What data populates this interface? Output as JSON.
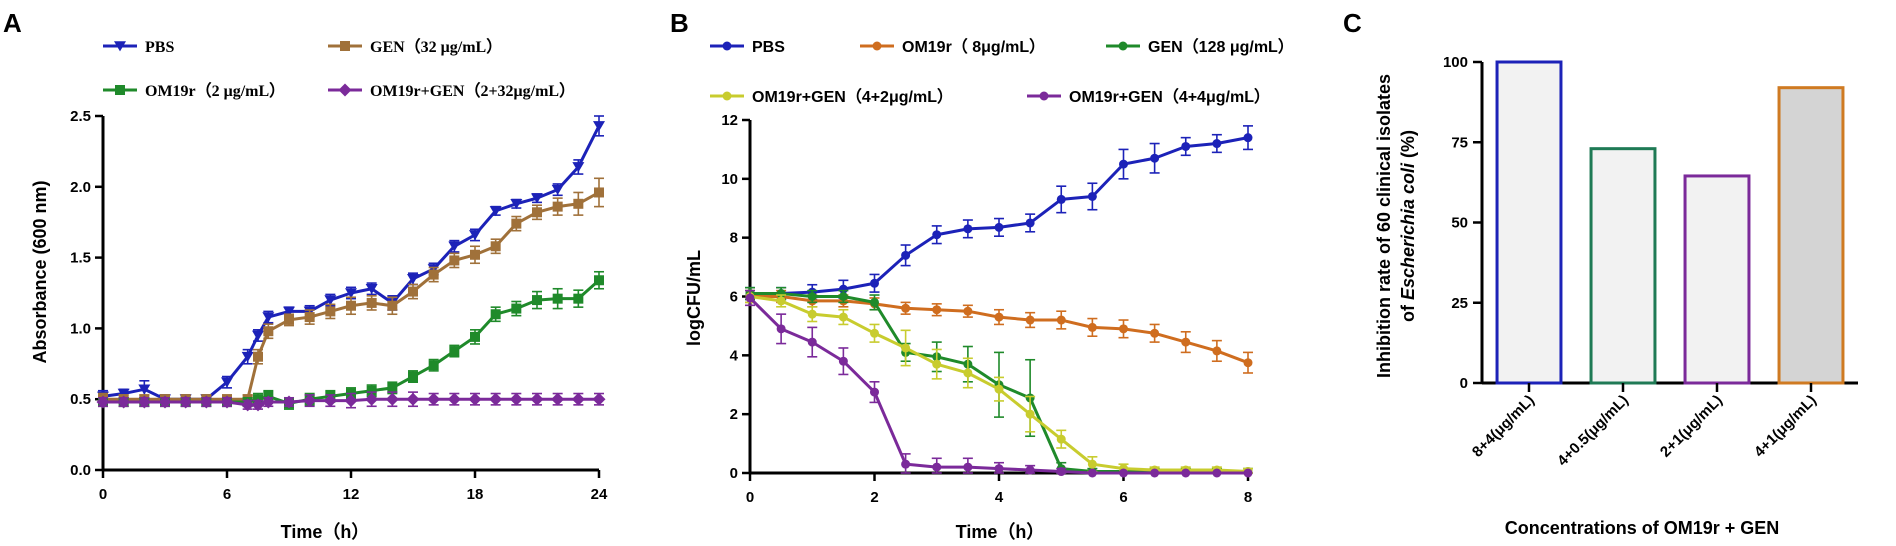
{
  "chart_data": [
    {
      "panel": "A",
      "type": "line",
      "title": "",
      "xlabel": "Time（h）",
      "ylabel": "Absorbance (600 nm)",
      "xlim": [
        0,
        24
      ],
      "ylim": [
        0,
        2.5
      ],
      "xticks": [
        "0",
        "6",
        "12",
        "18",
        "24"
      ],
      "yticks": [
        "0.0",
        "0.5",
        "1.0",
        "1.5",
        "2.0",
        "2.5"
      ],
      "legend_position": "top",
      "x": [
        0,
        1,
        2,
        3,
        4,
        5,
        6,
        7,
        7.5,
        8,
        9,
        10,
        11,
        12,
        13,
        14,
        15,
        16,
        17,
        18,
        19,
        20,
        21,
        22,
        23,
        24
      ],
      "series": [
        {
          "name": "PBS",
          "color": "#1c22b8",
          "marker": "triangle-down",
          "values": [
            0.52,
            0.54,
            0.57,
            0.5,
            0.5,
            0.5,
            0.62,
            0.8,
            0.95,
            1.08,
            1.12,
            1.12,
            1.2,
            1.25,
            1.28,
            1.18,
            1.35,
            1.42,
            1.58,
            1.66,
            1.83,
            1.88,
            1.92,
            1.98,
            2.14,
            2.43
          ],
          "errors": [
            0.04,
            0.03,
            0.06,
            0.03,
            0.03,
            0.03,
            0.04,
            0.05,
            0.04,
            0.04,
            0.03,
            0.04,
            0.04,
            0.04,
            0.04,
            0.05,
            0.04,
            0.04,
            0.04,
            0.04,
            0.03,
            0.03,
            0.03,
            0.04,
            0.05,
            0.07
          ]
        },
        {
          "name": "GEN（32 μg/mL）",
          "color": "#a0713a",
          "marker": "square",
          "values": [
            0.5,
            0.5,
            0.5,
            0.5,
            0.5,
            0.5,
            0.5,
            0.5,
            0.8,
            0.98,
            1.06,
            1.08,
            1.12,
            1.16,
            1.18,
            1.16,
            1.26,
            1.38,
            1.48,
            1.52,
            1.58,
            1.74,
            1.82,
            1.86,
            1.88,
            1.96
          ],
          "errors": [
            0.04,
            0.03,
            0.03,
            0.03,
            0.03,
            0.03,
            0.03,
            0.03,
            0.05,
            0.05,
            0.04,
            0.05,
            0.05,
            0.06,
            0.05,
            0.06,
            0.05,
            0.05,
            0.05,
            0.06,
            0.05,
            0.05,
            0.05,
            0.06,
            0.08,
            0.1
          ]
        },
        {
          "name": "OM19r（2 μg/mL）",
          "color": "#1f8a2a",
          "marker": "square",
          "values": [
            0.48,
            0.48,
            0.48,
            0.48,
            0.48,
            0.48,
            0.48,
            0.48,
            0.5,
            0.52,
            0.47,
            0.5,
            0.52,
            0.54,
            0.56,
            0.58,
            0.66,
            0.74,
            0.84,
            0.94,
            1.1,
            1.14,
            1.2,
            1.21,
            1.21,
            1.34
          ],
          "errors": [
            0.03,
            0.03,
            0.03,
            0.03,
            0.03,
            0.03,
            0.03,
            0.03,
            0.04,
            0.04,
            0.04,
            0.04,
            0.04,
            0.04,
            0.04,
            0.04,
            0.04,
            0.04,
            0.04,
            0.05,
            0.05,
            0.05,
            0.06,
            0.07,
            0.06,
            0.06
          ]
        },
        {
          "name": "OM19r+GEN（2+32μg/mL）",
          "color": "#7b2a9a",
          "marker": "diamond",
          "values": [
            0.48,
            0.48,
            0.48,
            0.48,
            0.48,
            0.48,
            0.48,
            0.46,
            0.46,
            0.48,
            0.48,
            0.49,
            0.49,
            0.49,
            0.5,
            0.5,
            0.5,
            0.5,
            0.5,
            0.5,
            0.5,
            0.5,
            0.5,
            0.5,
            0.5,
            0.5
          ],
          "errors": [
            0.03,
            0.03,
            0.03,
            0.03,
            0.03,
            0.03,
            0.03,
            0.03,
            0.03,
            0.03,
            0.03,
            0.04,
            0.04,
            0.05,
            0.05,
            0.05,
            0.05,
            0.04,
            0.04,
            0.04,
            0.04,
            0.04,
            0.04,
            0.04,
            0.04,
            0.04
          ]
        }
      ]
    },
    {
      "panel": "B",
      "type": "line",
      "title": "",
      "xlabel": "Time（h）",
      "ylabel": "logCFU/mL",
      "xlim": [
        0,
        8
      ],
      "ylim": [
        0,
        12
      ],
      "xticks": [
        "0",
        "2",
        "4",
        "6",
        "8"
      ],
      "yticks": [
        "0",
        "2",
        "4",
        "6",
        "8",
        "10",
        "12"
      ],
      "legend_position": "top",
      "x": [
        0,
        0.5,
        1,
        1.5,
        2,
        2.5,
        3,
        3.5,
        4,
        4.5,
        5,
        5.5,
        6,
        6.5,
        7,
        7.5,
        8
      ],
      "series": [
        {
          "name": "PBS",
          "color": "#1c22b8",
          "marker": "circle",
          "values": [
            6.1,
            6.1,
            6.15,
            6.25,
            6.45,
            7.4,
            8.1,
            8.3,
            8.35,
            8.5,
            9.3,
            9.4,
            10.5,
            10.7,
            11.1,
            11.2,
            11.4
          ],
          "errors": [
            0.2,
            0.2,
            0.25,
            0.3,
            0.3,
            0.35,
            0.3,
            0.3,
            0.3,
            0.3,
            0.45,
            0.45,
            0.5,
            0.5,
            0.3,
            0.3,
            0.4
          ]
        },
        {
          "name": "OM19r（ 8μg/mL）",
          "color": "#cf6d1f",
          "marker": "circle",
          "values": [
            6.0,
            6.0,
            5.85,
            5.85,
            5.75,
            5.6,
            5.55,
            5.5,
            5.3,
            5.2,
            5.2,
            4.95,
            4.9,
            4.75,
            4.45,
            4.15,
            3.75
          ],
          "errors": [
            0.2,
            0.2,
            0.2,
            0.2,
            0.2,
            0.2,
            0.2,
            0.2,
            0.25,
            0.25,
            0.3,
            0.3,
            0.3,
            0.3,
            0.35,
            0.35,
            0.35
          ]
        },
        {
          "name": "GEN（128 μg/mL）",
          "color": "#1f8a2a",
          "marker": "circle",
          "values": [
            6.1,
            6.1,
            6.0,
            6.0,
            5.8,
            4.1,
            3.95,
            3.7,
            3.0,
            2.55,
            0.15,
            0.05,
            0.05,
            0.05,
            0.05,
            0.05,
            0.05
          ],
          "errors": [
            0.2,
            0.2,
            0.2,
            0.2,
            0.25,
            0.3,
            0.5,
            0.6,
            1.1,
            1.3,
            0.2,
            0.1,
            0.1,
            0.1,
            0.1,
            0.1,
            0.1
          ]
        },
        {
          "name": "OM19r+GEN（4+2μg/mL）",
          "color": "#c8cc2e",
          "marker": "circle",
          "values": [
            6.0,
            5.85,
            5.4,
            5.3,
            4.75,
            4.25,
            3.7,
            3.4,
            2.85,
            2.0,
            1.15,
            0.3,
            0.15,
            0.1,
            0.1,
            0.1,
            0.05
          ],
          "errors": [
            0.2,
            0.2,
            0.25,
            0.25,
            0.3,
            0.6,
            0.5,
            0.5,
            0.4,
            0.6,
            0.3,
            0.25,
            0.15,
            0.1,
            0.1,
            0.1,
            0.1
          ]
        },
        {
          "name": "OM19r+GEN（4+4μg/mL）",
          "color": "#7b2a9a",
          "marker": "circle",
          "values": [
            5.95,
            4.9,
            4.45,
            3.8,
            2.75,
            0.3,
            0.2,
            0.2,
            0.15,
            0.1,
            0.05,
            0.0,
            0.0,
            0.0,
            0.0,
            0.0,
            0.0
          ],
          "errors": [
            0.25,
            0.5,
            0.5,
            0.45,
            0.35,
            0.35,
            0.3,
            0.3,
            0.2,
            0.15,
            0.1,
            0.05,
            0.05,
            0.05,
            0.05,
            0.05,
            0.05
          ]
        }
      ]
    },
    {
      "panel": "C",
      "type": "bar",
      "title": "",
      "xlabel": "Concentrations of OM19r + GEN",
      "ylabel_line1": "Inhibition rate of 60 clinical isolates",
      "ylabel_line2_prefix": "of ",
      "ylabel_line2_italic": "Escherichia coli",
      "ylabel_line2_suffix": " (%)",
      "ylim": [
        0,
        100
      ],
      "yticks": [
        "0",
        "25",
        "50",
        "75",
        "100"
      ],
      "categories": [
        "8+4(μg/mL)",
        "4+0.5(μg/mL)",
        "2+1(μg/mL)",
        "4+1(μg/mL)"
      ],
      "values": [
        100,
        73,
        64.5,
        92
      ],
      "edge_colors": [
        "#1c22b8",
        "#1f7a55",
        "#7b2a9a",
        "#cf7a22"
      ],
      "fill_colors": [
        "#f2f2f2",
        "#f2f2f2",
        "#f2f2f2",
        "#d4d4d4"
      ]
    }
  ]
}
